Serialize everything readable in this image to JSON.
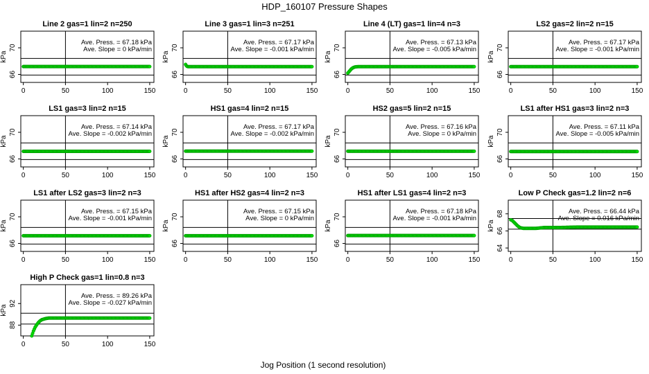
{
  "title": "HDP_160107  Pressure Shapes",
  "xlabel": "Jog Position (1 second resolution)",
  "ylabel": "kPa",
  "marker_color": "#00dd00",
  "chart_data": [
    {
      "type": "scatter",
      "title": "Line 2 gas=1 lin=2 n=250",
      "ann1": "Ave. Press. = 67.18 kPa",
      "ann2": "Ave. Slope = 0  kPa/min",
      "xlim": [
        -3,
        155
      ],
      "ylim": [
        64.8,
        72.5
      ],
      "xticks": [
        0,
        50,
        100,
        150
      ],
      "yticks": [
        66,
        70
      ],
      "hlines": [
        65.9,
        68.4
      ],
      "vline": 50,
      "series": [
        {
          "x": [
            0,
            150
          ],
          "y": [
            67.18,
            67.18
          ]
        }
      ]
    },
    {
      "type": "scatter",
      "title": "Line 3 gas=1 lin=3 n=251",
      "ann1": "Ave. Press. = 67.17 kPa",
      "ann2": "Ave. Slope = -0.001  kPa/min",
      "xlim": [
        -3,
        155
      ],
      "ylim": [
        64.8,
        72.5
      ],
      "xticks": [
        0,
        50,
        100,
        150
      ],
      "yticks": [
        66,
        70
      ],
      "hlines": [
        65.9,
        68.4
      ],
      "vline": 50,
      "series": [
        {
          "x": [
            0,
            1,
            2,
            3,
            150
          ],
          "y": [
            67.5,
            67.3,
            67.2,
            67.17,
            67.17
          ]
        }
      ]
    },
    {
      "type": "scatter",
      "title": "Line 4 (LT) gas=1 lin=4 n=3",
      "ann1": "Ave. Press. = 67.13 kPa",
      "ann2": "Ave. Slope = -0.005  kPa/min",
      "xlim": [
        -3,
        155
      ],
      "ylim": [
        64.8,
        72.5
      ],
      "xticks": [
        0,
        50,
        100,
        150
      ],
      "yticks": [
        66,
        70
      ],
      "hlines": [
        65.9,
        68.4
      ],
      "vline": 50,
      "series": [
        {
          "x": [
            0,
            2,
            4,
            6,
            8,
            10,
            12,
            150
          ],
          "y": [
            66.2,
            66.5,
            66.8,
            67.0,
            67.1,
            67.15,
            67.17,
            67.17
          ]
        }
      ]
    },
    {
      "type": "scatter",
      "title": "LS2 gas=2 lin=2 n=15",
      "ann1": "Ave. Press. = 67.17 kPa",
      "ann2": "Ave. Slope = -0.001  kPa/min",
      "xlim": [
        -3,
        155
      ],
      "ylim": [
        64.8,
        72.5
      ],
      "xticks": [
        0,
        50,
        100,
        150
      ],
      "yticks": [
        66,
        70
      ],
      "hlines": [
        65.9,
        68.4
      ],
      "vline": 50,
      "series": [
        {
          "x": [
            0,
            150
          ],
          "y": [
            67.17,
            67.17
          ]
        }
      ]
    },
    {
      "type": "scatter",
      "title": "LS1 gas=3 lin=2 n=15",
      "ann1": "Ave. Press. = 67.14 kPa",
      "ann2": "Ave. Slope = -0.002  kPa/min",
      "xlim": [
        -3,
        155
      ],
      "ylim": [
        64.8,
        72.5
      ],
      "xticks": [
        0,
        50,
        100,
        150
      ],
      "yticks": [
        66,
        70
      ],
      "hlines": [
        65.9,
        68.4
      ],
      "vline": 50,
      "series": [
        {
          "x": [
            0,
            150
          ],
          "y": [
            67.14,
            67.14
          ]
        }
      ]
    },
    {
      "type": "scatter",
      "title": "HS1 gas=4 lin=2 n=15",
      "ann1": "Ave. Press. = 67.17 kPa",
      "ann2": "Ave. Slope = -0.002  kPa/min",
      "xlim": [
        -3,
        155
      ],
      "ylim": [
        64.8,
        72.5
      ],
      "xticks": [
        0,
        50,
        100,
        150
      ],
      "yticks": [
        66,
        70
      ],
      "hlines": [
        65.9,
        68.4
      ],
      "vline": 50,
      "series": [
        {
          "x": [
            0,
            150
          ],
          "y": [
            67.17,
            67.17
          ]
        }
      ]
    },
    {
      "type": "scatter",
      "title": "HS2 gas=5 lin=2 n=15",
      "ann1": "Ave. Press. = 67.16 kPa",
      "ann2": "Ave. Slope = 0  kPa/min",
      "xlim": [
        -3,
        155
      ],
      "ylim": [
        64.8,
        72.5
      ],
      "xticks": [
        0,
        50,
        100,
        150
      ],
      "yticks": [
        66,
        70
      ],
      "hlines": [
        65.9,
        68.4
      ],
      "vline": 50,
      "series": [
        {
          "x": [
            0,
            150
          ],
          "y": [
            67.16,
            67.16
          ]
        }
      ]
    },
    {
      "type": "scatter",
      "title": "LS1 after HS1 gas=3 lin=2 n=3",
      "ann1": "Ave. Press. = 67.11 kPa",
      "ann2": "Ave. Slope = -0.005  kPa/min",
      "xlim": [
        -3,
        155
      ],
      "ylim": [
        64.8,
        72.5
      ],
      "xticks": [
        0,
        50,
        100,
        150
      ],
      "yticks": [
        66,
        70
      ],
      "hlines": [
        65.9,
        68.4
      ],
      "vline": 50,
      "series": [
        {
          "x": [
            0,
            150
          ],
          "y": [
            67.11,
            67.11
          ]
        }
      ]
    },
    {
      "type": "scatter",
      "title": "LS1 after LS2 gas=3 lin=2 n=3",
      "ann1": "Ave. Press. = 67.15 kPa",
      "ann2": "Ave. Slope = -0.001  kPa/min",
      "xlim": [
        -3,
        155
      ],
      "ylim": [
        64.8,
        72.5
      ],
      "xticks": [
        0,
        50,
        100,
        150
      ],
      "yticks": [
        66,
        70
      ],
      "hlines": [
        65.9,
        68.4
      ],
      "vline": 50,
      "series": [
        {
          "x": [
            0,
            150
          ],
          "y": [
            67.15,
            67.15
          ]
        }
      ]
    },
    {
      "type": "scatter",
      "title": "HS1 after HS2 gas=4 lin=2 n=3",
      "ann1": "Ave. Press. = 67.15 kPa",
      "ann2": "Ave. Slope = 0  kPa/min",
      "xlim": [
        -3,
        155
      ],
      "ylim": [
        64.8,
        72.5
      ],
      "xticks": [
        0,
        50,
        100,
        150
      ],
      "yticks": [
        66,
        70
      ],
      "hlines": [
        65.9,
        68.4
      ],
      "vline": 50,
      "series": [
        {
          "x": [
            0,
            150
          ],
          "y": [
            67.15,
            67.15
          ]
        }
      ]
    },
    {
      "type": "scatter",
      "title": "HS1 after LS1 gas=4 lin=2 n=3",
      "ann1": "Ave. Press. = 67.18 kPa",
      "ann2": "Ave. Slope = -0.001  kPa/min",
      "xlim": [
        -3,
        155
      ],
      "ylim": [
        64.8,
        72.5
      ],
      "xticks": [
        0,
        50,
        100,
        150
      ],
      "yticks": [
        66,
        70
      ],
      "hlines": [
        65.9,
        68.4
      ],
      "vline": 50,
      "series": [
        {
          "x": [
            0,
            150
          ],
          "y": [
            67.18,
            67.18
          ]
        }
      ]
    },
    {
      "type": "scatter",
      "title": "Low P Check gas=1.2 lin=2 n=6",
      "ann1": "Ave. Press. = 66.44 kPa",
      "ann2": "Ave. Slope = 0.016  kPa/min",
      "xlim": [
        -3,
        155
      ],
      "ylim": [
        63.6,
        69.6
      ],
      "xticks": [
        0,
        50,
        100,
        150
      ],
      "yticks": [
        64,
        66,
        68
      ],
      "hlines": [
        66.2,
        67.45
      ],
      "vline": 50,
      "series": [
        {
          "x": [
            0,
            2,
            4,
            6,
            8,
            10,
            12,
            15,
            20,
            30,
            35,
            40,
            60,
            80,
            100,
            120,
            150
          ],
          "y": [
            67.3,
            67.2,
            67.0,
            66.8,
            66.6,
            66.45,
            66.35,
            66.3,
            66.3,
            66.3,
            66.35,
            66.4,
            66.4,
            66.45,
            66.45,
            66.45,
            66.45
          ]
        }
      ]
    },
    {
      "type": "scatter",
      "title": "High P Check gas=1 lin=0.8 n=3",
      "ann1": "Ave. Press. = 89.26 kPa",
      "ann2": "Ave. Slope = -0.027  kPa/min",
      "xlim": [
        -3,
        155
      ],
      "ylim": [
        86.0,
        95.5
      ],
      "xticks": [
        0,
        50,
        100,
        150
      ],
      "yticks": [
        88,
        92
      ],
      "hlines": [
        88.2,
        90.2
      ],
      "vline": 50,
      "series": [
        {
          "x": [
            10,
            12,
            14,
            16,
            18,
            20,
            22,
            24,
            26,
            28,
            30,
            34,
            38,
            45,
            60,
            80,
            100,
            120,
            150
          ],
          "y": [
            86.0,
            86.9,
            87.6,
            88.1,
            88.5,
            88.8,
            89.0,
            89.1,
            89.2,
            89.25,
            89.3,
            89.3,
            89.3,
            89.3,
            89.3,
            89.3,
            89.3,
            89.3,
            89.3
          ]
        }
      ]
    }
  ]
}
